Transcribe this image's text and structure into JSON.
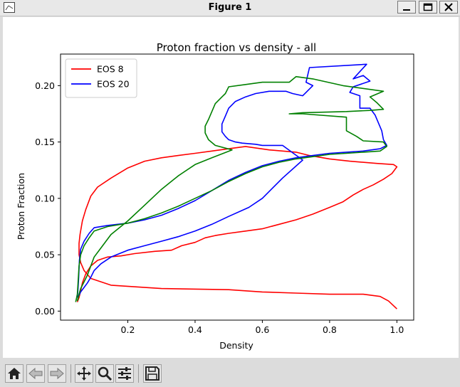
{
  "window": {
    "title": "Figure 1",
    "icons": [
      "figure-icon",
      "minimize-icon",
      "maximize-icon",
      "close-icon"
    ]
  },
  "toolbar": {
    "buttons": [
      "home-icon",
      "back-icon",
      "forward-icon",
      "pan-icon",
      "zoom-icon",
      "configure-subplots-icon",
      "save-icon"
    ]
  },
  "chart_data": {
    "type": "line",
    "title": "Proton fraction vs density - all",
    "xlabel": "Density",
    "ylabel": "Proton Fraction",
    "xlim": [
      0.0,
      1.05
    ],
    "ylim": [
      -0.008,
      0.228
    ],
    "xticks": [
      0.2,
      0.4,
      0.6,
      0.8,
      1.0
    ],
    "xtick_labels": [
      "0.2",
      "0.4",
      "0.6",
      "0.8",
      "1.0"
    ],
    "yticks": [
      0.0,
      0.05,
      0.1,
      0.15,
      0.2
    ],
    "ytick_labels": [
      "0.00",
      "0.05",
      "0.10",
      "0.15",
      "0.20"
    ],
    "grid": false,
    "legend_position": "upper-left",
    "series": [
      {
        "name": "EOS 8",
        "color": "#ff0000",
        "in_legend": true,
        "x": [
          0.05,
          0.055,
          0.06,
          0.065,
          0.075,
          0.09,
          0.11,
          0.14,
          0.18,
          0.22,
          0.28,
          0.33,
          0.36,
          0.4,
          0.43,
          0.46,
          0.5,
          0.55,
          0.6,
          0.65,
          0.7,
          0.75,
          0.8,
          0.84,
          0.87,
          0.9,
          0.93,
          0.96,
          0.985,
          1.0,
          0.99,
          0.94,
          0.86,
          0.8,
          0.74,
          0.7,
          0.62,
          0.55,
          0.5,
          0.45,
          0.4,
          0.35,
          0.3,
          0.25,
          0.2,
          0.15,
          0.11,
          0.09,
          0.075,
          0.065,
          0.058,
          0.055,
          0.055,
          0.06,
          0.07,
          0.09,
          0.15,
          0.3,
          0.5,
          0.6,
          0.7,
          0.8,
          0.9,
          0.95,
          0.975,
          1.0
        ],
        "y": [
          0.008,
          0.012,
          0.018,
          0.025,
          0.033,
          0.04,
          0.045,
          0.048,
          0.049,
          0.051,
          0.053,
          0.054,
          0.058,
          0.061,
          0.065,
          0.067,
          0.069,
          0.071,
          0.073,
          0.077,
          0.081,
          0.086,
          0.092,
          0.097,
          0.103,
          0.108,
          0.112,
          0.117,
          0.122,
          0.128,
          0.13,
          0.131,
          0.133,
          0.135,
          0.138,
          0.141,
          0.143,
          0.146,
          0.144,
          0.142,
          0.14,
          0.138,
          0.136,
          0.133,
          0.127,
          0.118,
          0.11,
          0.102,
          0.09,
          0.08,
          0.068,
          0.06,
          0.05,
          0.043,
          0.036,
          0.029,
          0.023,
          0.02,
          0.019,
          0.017,
          0.016,
          0.015,
          0.015,
          0.013,
          0.009,
          0.002
        ]
      },
      {
        "name": "EOS 20",
        "color": "#0000ff",
        "in_legend": true,
        "x": [
          0.05,
          0.052,
          0.054,
          0.056,
          0.06,
          0.07,
          0.085,
          0.1,
          0.14,
          0.2,
          0.25,
          0.3,
          0.35,
          0.4,
          0.45,
          0.5,
          0.55,
          0.6,
          0.65,
          0.7,
          0.75,
          0.8,
          0.85,
          0.9,
          0.95,
          0.97,
          0.96,
          0.955,
          0.945,
          0.935,
          0.92,
          0.89,
          0.89,
          0.86,
          0.87,
          0.92,
          0.9,
          0.87,
          0.91,
          0.74,
          0.73,
          0.75,
          0.73,
          0.72,
          0.69,
          0.67,
          0.62,
          0.58,
          0.55,
          0.52,
          0.5,
          0.49,
          0.48,
          0.48,
          0.49,
          0.5,
          0.52,
          0.54,
          0.58,
          0.6,
          0.66,
          0.72,
          0.66,
          0.6,
          0.56,
          0.5,
          0.45,
          0.4,
          0.35,
          0.3,
          0.25,
          0.2,
          0.15,
          0.12,
          0.1,
          0.09,
          0.08,
          0.07,
          0.06,
          0.055,
          0.05
        ],
        "y": [
          0.012,
          0.02,
          0.03,
          0.045,
          0.055,
          0.062,
          0.069,
          0.074,
          0.076,
          0.078,
          0.081,
          0.085,
          0.091,
          0.098,
          0.107,
          0.116,
          0.123,
          0.129,
          0.133,
          0.136,
          0.138,
          0.14,
          0.141,
          0.142,
          0.144,
          0.147,
          0.152,
          0.16,
          0.167,
          0.174,
          0.18,
          0.18,
          0.191,
          0.194,
          0.199,
          0.204,
          0.209,
          0.206,
          0.219,
          0.216,
          0.203,
          0.2,
          0.194,
          0.191,
          0.193,
          0.195,
          0.195,
          0.193,
          0.19,
          0.186,
          0.18,
          0.173,
          0.166,
          0.159,
          0.155,
          0.152,
          0.15,
          0.149,
          0.148,
          0.147,
          0.147,
          0.134,
          0.118,
          0.1,
          0.092,
          0.084,
          0.077,
          0.071,
          0.066,
          0.062,
          0.058,
          0.054,
          0.048,
          0.042,
          0.036,
          0.03,
          0.025,
          0.021,
          0.017,
          0.014,
          0.012
        ]
      },
      {
        "name": "",
        "color": "#008000",
        "in_legend": false,
        "x": [
          0.045,
          0.05,
          0.052,
          0.055,
          0.06,
          0.07,
          0.085,
          0.1,
          0.14,
          0.2,
          0.25,
          0.3,
          0.35,
          0.4,
          0.45,
          0.5,
          0.55,
          0.6,
          0.65,
          0.7,
          0.75,
          0.8,
          0.85,
          0.9,
          0.95,
          0.97,
          0.96,
          0.9,
          0.88,
          0.85,
          0.85,
          0.72,
          0.68,
          0.72,
          0.85,
          0.92,
          0.96,
          0.94,
          0.92,
          0.96,
          0.84,
          0.75,
          0.7,
          0.68,
          0.66,
          0.6,
          0.55,
          0.5,
          0.49,
          0.48,
          0.46,
          0.44,
          0.43,
          0.43,
          0.44,
          0.46,
          0.51,
          0.45,
          0.4,
          0.35,
          0.3,
          0.25,
          0.2,
          0.15,
          0.12,
          0.1,
          0.09,
          0.08,
          0.07,
          0.06,
          0.055,
          0.05
        ],
        "y": [
          0.008,
          0.015,
          0.025,
          0.04,
          0.05,
          0.058,
          0.065,
          0.071,
          0.075,
          0.078,
          0.082,
          0.087,
          0.093,
          0.1,
          0.107,
          0.115,
          0.122,
          0.128,
          0.132,
          0.135,
          0.137,
          0.139,
          0.14,
          0.141,
          0.142,
          0.146,
          0.15,
          0.151,
          0.155,
          0.16,
          0.172,
          0.175,
          0.175,
          0.176,
          0.177,
          0.178,
          0.179,
          0.185,
          0.19,
          0.195,
          0.2,
          0.206,
          0.208,
          0.203,
          0.203,
          0.203,
          0.201,
          0.199,
          0.193,
          0.19,
          0.184,
          0.17,
          0.164,
          0.158,
          0.152,
          0.147,
          0.143,
          0.136,
          0.13,
          0.12,
          0.108,
          0.094,
          0.08,
          0.068,
          0.056,
          0.048,
          0.04,
          0.032,
          0.026,
          0.02,
          0.015,
          0.009
        ]
      }
    ]
  }
}
